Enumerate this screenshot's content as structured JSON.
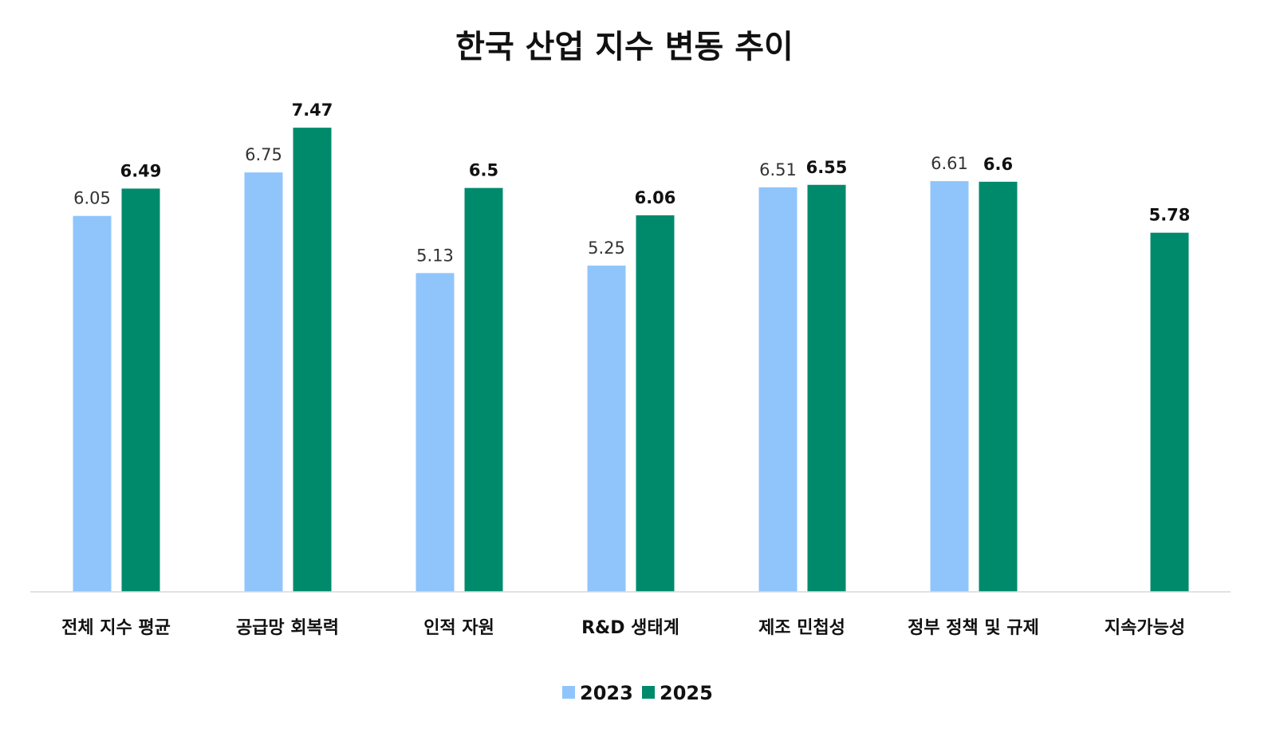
{
  "chart_data": {
    "type": "bar",
    "title": "한국 산업 지수 변동 추이",
    "categories": [
      "전체 지수 평균",
      "공급망 회복력",
      "인적 자원",
      "R&D 생태계",
      "제조 민첩성",
      "정부 정책 및 규제",
      "지속가능성"
    ],
    "series": [
      {
        "name": "2023",
        "color": "#90c5fb",
        "values": [
          6.05,
          6.75,
          5.13,
          5.25,
          6.51,
          6.61,
          null
        ],
        "labels": [
          "6.05",
          "6.75",
          "5.13",
          "5.25",
          "6.51",
          "6.61",
          null
        ]
      },
      {
        "name": "2025",
        "color": "#008a6c",
        "values": [
          6.49,
          7.47,
          6.5,
          6.06,
          6.55,
          6.6,
          5.78
        ],
        "labels": [
          "6.49",
          "7.47",
          "6.5",
          "6.06",
          "6.55",
          "6.6",
          "5.78"
        ]
      }
    ],
    "ylim": [
      0,
      9.5
    ],
    "grid": false,
    "legend": "bottom-center",
    "xlabel": "",
    "ylabel": ""
  }
}
